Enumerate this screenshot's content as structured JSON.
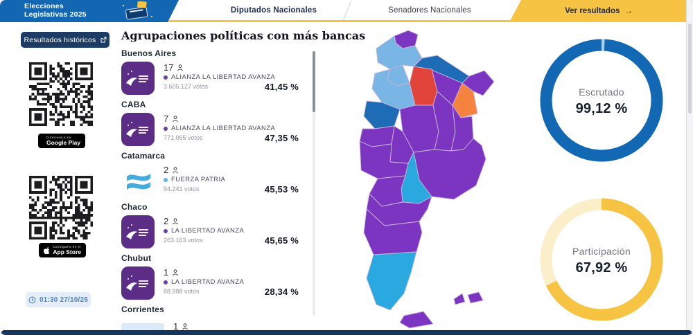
{
  "header": {
    "brand": {
      "line1": "Elecciones",
      "line2": "Legislativas 2025"
    },
    "tabs": [
      {
        "label": "Diputados Nacionales"
      },
      {
        "label": "Senadores Nacionales"
      }
    ],
    "cta_label": "Ver resultados",
    "cta_arrow": "→",
    "accent_yellow": "#f6c343",
    "brand_blue": "#1266b2"
  },
  "sidebar": {
    "historic_button": "Resultados históricos",
    "google_play": {
      "line1": "DISPONIBLE EN",
      "line2": "Google Play"
    },
    "app_store": {
      "line1": "Consíguelo en el",
      "line2": "App Store"
    },
    "timestamp": "01:30 27/10/25"
  },
  "main": {
    "title": "Agrupaciones políticas con más bancas",
    "groups": [
      {
        "province": "Buenos Aires",
        "seats": "17",
        "party": "ALIANZA LA LIBERTAD AVANZA",
        "votes": "3.605.127 votos",
        "percent": "41,45 %",
        "bullet": "#6a3fa8",
        "logo": "lla"
      },
      {
        "province": "CABA",
        "seats": "7",
        "party": "ALIANZA LA LIBERTAD AVANZA",
        "votes": "771.065 votos",
        "percent": "47,35 %",
        "bullet": "#6a3fa8",
        "logo": "lla"
      },
      {
        "province": "Catamarca",
        "seats": "2",
        "party": "FUERZA PATRIA",
        "votes": "94.241 votos",
        "percent": "45,53 %",
        "bullet": "#58b7e8",
        "logo": "fp"
      },
      {
        "province": "Chaco",
        "seats": "2",
        "party": "LA LIBERTAD AVANZA",
        "votes": "263.163 votos",
        "percent": "45,65 %",
        "bullet": "#6a3fa8",
        "logo": "lla"
      },
      {
        "province": "Chubut",
        "seats": "1",
        "party": "LA LIBERTAD AVANZA",
        "votes": "88.988 votos",
        "percent": "28,34 %",
        "bullet": "#6a3fa8",
        "logo": "lla"
      },
      {
        "province": "Corrientes",
        "seats": "1",
        "logo": "placeholder"
      }
    ]
  },
  "logos": {
    "lla_bg": "#5b2d87",
    "fp_wave": "#45abdc",
    "placeholder": "#dce9f9"
  },
  "gauges": [
    {
      "label": "Escrutado",
      "value_text": "99,12 %",
      "value": 99.12,
      "color": "#1268b3",
      "track": "#a9d1f0"
    },
    {
      "label": "Participación",
      "value_text": "67,92 %",
      "value": 67.92,
      "color": "#f6c343",
      "track": "#faefc9"
    }
  ],
  "map": {
    "palette": {
      "purple": "#7c35c0",
      "darkblue": "#1e6cb5",
      "lightblue": "#79b5e5",
      "red": "#e0443a",
      "orange": "#f5823e",
      "cyan": "#2aa9e0"
    },
    "provinces": {
      "jujuy": "purple",
      "salta": "lightblue",
      "formosa": "darkblue",
      "santiago": "red",
      "chaco": "purple",
      "corrientes": "orange",
      "misiones": "purple",
      "tucuman": "lightblue",
      "catamarca": "lightblue",
      "larioja": "darkblue",
      "sanjuan": "purple",
      "cordoba": "purple",
      "santafe": "purple",
      "entrerios": "purple",
      "sanluis": "purple",
      "mendoza": "purple",
      "buenosaires": "purple",
      "lapampa": "cyan",
      "neuquen": "purple",
      "rionegro": "purple",
      "chubut": "purple",
      "santacruz": "cyan",
      "tierradelfuego": "purple",
      "malvinas": "purple"
    }
  }
}
